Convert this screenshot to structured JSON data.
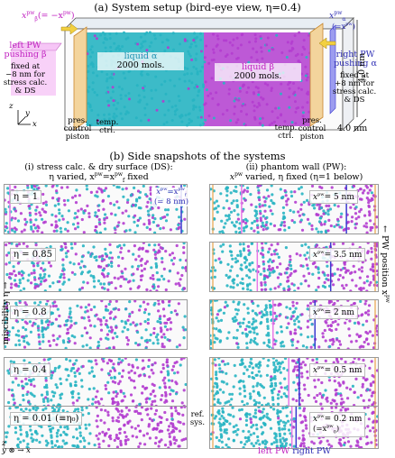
{
  "setup": {
    "title": "(a) System setup (bird-eye view, η=0.4)",
    "left_pw_label": "x",
    "left_pw_super": "pw",
    "left_pw_sub": "β",
    "left_pw_eq": "(= −x",
    "left_pw_eq_super": "pw",
    "left_pw_eq_close": ")",
    "right_pw_label": "x",
    "right_pw_super": "pw",
    "right_pw_sub": "α",
    "right_pw_eq": "(=x",
    "right_pw_eq_super": "pw",
    "right_pw_eq_close": ")",
    "left_text": [
      "left PW",
      "pushing β",
      "fixed at",
      "−8 nm for",
      "stress calc.",
      "& DS"
    ],
    "right_text": [
      "right PW",
      "pushing α",
      "fixed at",
      "+8 nm for",
      "stress calc.",
      "& DS"
    ],
    "liquid_alpha": [
      "liquid α",
      "2000 mols."
    ],
    "liquid_beta": [
      "liquid β",
      "2000 mols."
    ],
    "pres_left": [
      "pres.",
      "control",
      "piston"
    ],
    "pres_right": [
      "pres.",
      "control",
      "piston"
    ],
    "temp_left": [
      "temp.",
      "ctrl."
    ],
    "temp_right": [
      "temp.",
      "ctrl."
    ],
    "dim_height": "4.0 nm",
    "dim_depth": "4.0 nm",
    "axis_z": "z",
    "axis_y": "y",
    "axis_x": "x"
  },
  "side": {
    "title": "(b) Side snapshots of the systems",
    "col_i_title": "(i) stress calc. & dry surface (DS):",
    "col_i_sub": "η varied, x",
    "col_i_sub_super": "pw",
    "col_i_sub_eq": "=x",
    "col_i_sub_eq_super": "pw",
    "col_i_sub_eq_sub": "f",
    "col_i_sub_end": " fixed",
    "col_ii_title": "(ii) phantom wall (PW):",
    "col_ii_sub": "x",
    "col_ii_sub_super": "pw",
    "col_ii_sub_end": " varied, η fixed (η=1 below)",
    "eta_values": [
      "η = 1",
      "η = 0.85",
      "η = 0.8",
      "η = 0.4",
      "η = 0.01 (≡η₀)"
    ],
    "pw_values": [
      "x",
      "x",
      "x",
      "x",
      "x"
    ],
    "pw_numbers": [
      "= 5 nm",
      "= 3.5 nm",
      "= 2 nm",
      "= 0.5 nm",
      "= 0.2 nm"
    ],
    "pw_ref": "(=x",
    "pw_ref_super": "pw",
    "pw_ref_sub": "0",
    "pw_ref_close": ")",
    "first_note_a": "x",
    "first_note_a_super": "pw",
    "first_note_a_eq": "=x",
    "first_note_a_eq_super": "pw",
    "first_note_a_eq_sub": "f",
    "first_note_b": "(= 8 nm)",
    "eta_mix": [
      1.0,
      0.85,
      0.8,
      0.4,
      0.01
    ],
    "pw_pos_nm": [
      5,
      3.5,
      2,
      0.5,
      0.2
    ],
    "miscibility": "miscibility η",
    "pw_position": "PW position x",
    "pw_position_super": "pw",
    "ref_sys": [
      "ref.",
      "sys."
    ],
    "left_pw": "left PW",
    "right_pw": "right PW",
    "axis_z": "z",
    "axis_y": "y",
    "axis_x": "x"
  },
  "colors": {
    "cyan": "#27b4c2",
    "magenta": "#b23ccf",
    "pink_wall": "#e879e8",
    "blue_wall": "#3a3ad0",
    "orange": "#e8a24a",
    "piston_fill": "#f3d49c",
    "arrow": "#f2d040"
  }
}
